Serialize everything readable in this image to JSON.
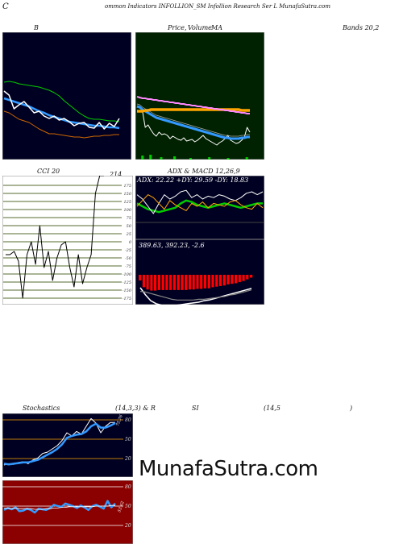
{
  "header": {
    "title_left": "C",
    "title": "ommon  Indicators INFOLLION_SM Infollion  Research Ser L  MunafaSutra.com"
  },
  "labels": {
    "bands_left": "B",
    "price_volume": "Price,",
    "volume_overlay": "Volume",
    "ma": "MA",
    "bands_right": "Bands 20,2",
    "cci": "CCI 20",
    "cci_value": "214",
    "adx_macd": "ADX  & MACD 12,26,9",
    "adx_values": "ADX: 22.22  +DY: 29.59 -DY: 18.83",
    "macd_values": "389.63,  392.23,  -2.6",
    "stoch_left": "Stochastics",
    "stoch_mid": "(14,3,3) & R",
    "stoch_si": "SI",
    "stoch_rsi": "(14,5",
    "stoch_close": ")",
    "stoch_tag": "75,76",
    "rsi_tag": "53.62",
    "watermark": "MunafaSutra.com"
  },
  "colors": {
    "panel_dark": "#000022",
    "panel_green": "#002200",
    "rsi_bg": "#8b0000",
    "price_line": "#ffffff",
    "ma_blue": "#3399ff",
    "ma_orange": "#ffa500",
    "ma_pink": "#ff88ff",
    "band_green": "#00cc00",
    "band_orange": "#cc6600",
    "grid_olive": "#556b2f",
    "macd_red": "#ff0000"
  },
  "chart_data": [
    {
      "type": "line",
      "panel": "bollinger",
      "series": [
        {
          "values": [
            62,
            61,
            62,
            64,
            65,
            66,
            67,
            68,
            70,
            72,
            75,
            79,
            85,
            90,
            95,
            100,
            104,
            107,
            108,
            108,
            109,
            110,
            110,
            111
          ]
        },
        {
          "values": [
            82,
            84,
            86,
            88,
            90,
            92,
            95,
            98,
            100,
            103,
            105,
            107,
            109,
            111,
            112,
            113,
            114,
            115,
            116,
            116,
            117,
            118,
            118,
            119
          ]
        },
        {
          "values": [
            98,
            100,
            104,
            108,
            110,
            112,
            116,
            120,
            123,
            126,
            126,
            127,
            128,
            129,
            130,
            130,
            131,
            130,
            129,
            129,
            128,
            128,
            127,
            127
          ]
        },
        {
          "values": [
            73,
            78,
            95,
            90,
            86,
            93,
            100,
            98,
            104,
            107,
            104,
            109,
            107,
            111,
            116,
            113,
            112,
            118,
            119,
            112,
            120,
            113,
            117,
            107
          ]
        }
      ]
    },
    {
      "type": "line",
      "panel": "price_ma",
      "series": [
        {
          "values": [
            93,
            92,
            98,
            118,
            115,
            121,
            126,
            129,
            124,
            127,
            126,
            128,
            132,
            129,
            131,
            133,
            134,
            131,
            135,
            134,
            133,
            136,
            134,
            131,
            128,
            132,
            134,
            136,
            138,
            140,
            137,
            135,
            132,
            128,
            134,
            136,
            138,
            137,
            134,
            130,
            118,
            124
          ]
        },
        {
          "values": [
            92,
            93,
            96,
            98,
            100,
            102,
            104,
            106,
            107,
            108,
            109,
            110,
            111,
            112,
            113,
            114,
            115,
            116,
            117,
            118,
            119,
            120,
            121,
            122,
            123,
            124,
            125,
            126,
            127,
            128,
            129,
            130,
            131,
            131,
            132,
            132,
            132,
            132,
            131,
            131,
            130,
            130
          ]
        },
        {
          "values": [
            98,
            98,
            98,
            97,
            97,
            96,
            96,
            96,
            96,
            96,
            96,
            96,
            96,
            96,
            96,
            96,
            96,
            96,
            96,
            96,
            96,
            96,
            96,
            96,
            96,
            96,
            96,
            96,
            96,
            96,
            96,
            96,
            96,
            96,
            96,
            96,
            96,
            96,
            97,
            97,
            97,
            97
          ]
        },
        {
          "values": [
            80,
            81,
            82,
            82,
            83,
            83,
            84,
            84,
            85,
            85,
            86,
            86,
            87,
            87,
            88,
            88,
            89,
            89,
            90,
            90,
            91,
            91,
            92,
            92,
            93,
            93,
            94,
            94,
            95,
            95,
            96,
            96,
            97,
            97,
            98,
            98,
            99,
            99,
            100,
            100,
            101,
            101
          ]
        }
      ],
      "volume": [
        0,
        5,
        0,
        0,
        6,
        0,
        0,
        0,
        3,
        0,
        0,
        0,
        0,
        4,
        0,
        0,
        0,
        0,
        0,
        2,
        0,
        0,
        0,
        0,
        0,
        0,
        3,
        0,
        0,
        0,
        0,
        0,
        0,
        2,
        0,
        0,
        0,
        0,
        0,
        0,
        3,
        0
      ]
    },
    {
      "type": "line",
      "panel": "cci",
      "ticks": [
        "175",
        "150",
        "125",
        "100",
        "75",
        "50",
        "25",
        "0",
        "-25",
        "-50",
        "-75",
        "-100",
        "-125",
        "-150",
        "-175"
      ],
      "values": [
        -40,
        -40,
        -30,
        -60,
        -200,
        -40,
        0,
        -70,
        50,
        -80,
        -30,
        -120,
        -50,
        -10,
        0,
        -80,
        -140,
        -40,
        -130,
        -80,
        -40,
        150,
        214,
        214
      ]
    },
    {
      "type": "line",
      "panel": "adx",
      "series": [
        {
          "name": "ADX",
          "values": [
            22,
            20,
            18,
            17,
            16,
            17,
            18,
            19,
            22,
            24,
            23,
            21,
            20,
            19,
            20,
            21,
            22,
            21,
            20,
            19,
            20,
            21,
            22,
            22
          ]
        },
        {
          "name": "+DY",
          "values": [
            28,
            25,
            20,
            15,
            22,
            28,
            25,
            27,
            30,
            31,
            26,
            28,
            25,
            27,
            26,
            28,
            27,
            25,
            24,
            26,
            29,
            30,
            28,
            30
          ]
        },
        {
          "name": "-DY",
          "values": [
            20,
            24,
            28,
            26,
            22,
            18,
            24,
            21,
            19,
            17,
            22,
            20,
            23,
            19,
            22,
            21,
            20,
            23,
            24,
            21,
            19,
            18,
            22,
            19
          ]
        }
      ]
    },
    {
      "type": "bar",
      "panel": "macd",
      "hist": [
        -10,
        -22,
        -26,
        -28,
        -28,
        -27,
        -27,
        -27,
        -27,
        -27,
        -27,
        -27,
        -27,
        -26,
        -26,
        -25,
        -25,
        -24,
        -24,
        -22,
        -21,
        -20,
        -19,
        -17,
        -16,
        -15,
        -13,
        -11,
        -8,
        -5
      ],
      "series": [
        {
          "values": [
            0,
            -10,
            -18,
            -22,
            -24,
            -25,
            -25,
            -24,
            -23,
            -22,
            -21,
            -20,
            -18,
            -17,
            -15,
            -13,
            -11,
            -9,
            -7,
            -5,
            -3,
            -1
          ]
        },
        {
          "values": [
            -5,
            -6,
            -8,
            -10,
            -12,
            -14,
            -16,
            -17,
            -17,
            -17,
            -17,
            -16,
            -16,
            -15,
            -14,
            -13,
            -12,
            -10,
            -9,
            -7,
            -5,
            -3
          ]
        }
      ]
    },
    {
      "type": "line",
      "panel": "stochastics",
      "ticks": [
        "80",
        "50",
        "20"
      ],
      "series": [
        {
          "values": [
            10,
            12,
            11,
            14,
            15,
            12,
            18,
            21,
            28,
            30,
            35,
            40,
            48,
            60,
            55,
            62,
            58,
            70,
            82,
            75,
            60,
            70,
            76,
            76
          ]
        },
        {
          "values": [
            12,
            11,
            12,
            13,
            14,
            14,
            16,
            18,
            22,
            26,
            30,
            35,
            42,
            52,
            55,
            57,
            58,
            62,
            70,
            74,
            68,
            68,
            71,
            75
          ]
        }
      ]
    },
    {
      "type": "line",
      "panel": "rsi",
      "ticks": [
        "80",
        "50",
        "20"
      ],
      "series": [
        {
          "values": [
            44,
            47,
            45,
            48,
            42,
            43,
            46,
            44,
            40,
            46,
            45,
            44,
            47,
            52,
            50,
            49,
            54,
            52,
            50,
            47,
            51,
            48,
            44,
            50,
            52,
            49,
            46,
            58,
            48,
            54
          ]
        },
        {
          "values": [
            47,
            47,
            46,
            47,
            46,
            46,
            46,
            46,
            45,
            45,
            45,
            46,
            46,
            47,
            47,
            48,
            48,
            49,
            49,
            49,
            49,
            49,
            49,
            49,
            50,
            50,
            50,
            50,
            51,
            51
          ]
        }
      ]
    }
  ]
}
